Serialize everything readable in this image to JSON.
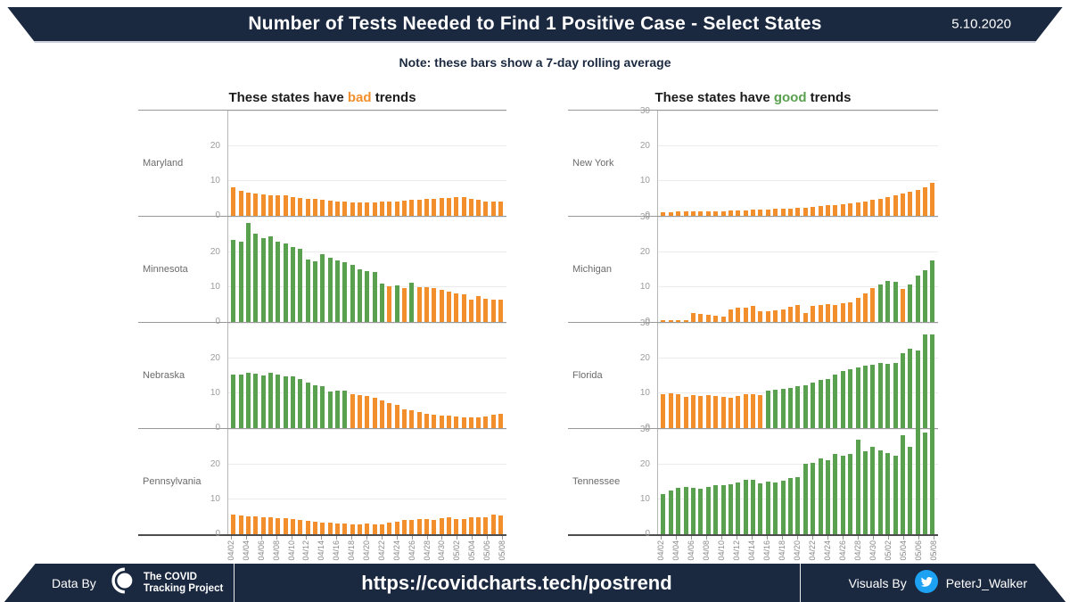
{
  "header": {
    "title": "Number of Tests Needed to Find 1 Positive Case - Select States",
    "date": "5.10.2020"
  },
  "note": "Note: these bars show a 7-day rolling average",
  "columns": [
    {
      "id": "bad",
      "heading_prefix": "These states have ",
      "heading_word": "bad",
      "heading_suffix": " trends"
    },
    {
      "id": "good",
      "heading_prefix": "These states have ",
      "heading_word": "good",
      "heading_suffix": " trends"
    }
  ],
  "colors": {
    "orange": "#F28E2B",
    "green": "#59A14F",
    "navy": "#1B2940",
    "twitter_blue": "#1DA1F2",
    "gridline": "#ECECEC"
  },
  "x_axis": {
    "labels": [
      "04/02",
      "04/04",
      "04/06",
      "04/08",
      "04/10",
      "04/12",
      "04/14",
      "04/16",
      "04/18",
      "04/20",
      "04/22",
      "04/24",
      "04/26",
      "04/28",
      "04/30",
      "05/02",
      "05/04",
      "05/06",
      "05/08"
    ]
  },
  "chart_data": [
    {
      "type": "bar",
      "state": "Maryland",
      "column": "bad",
      "ylim": [
        0,
        30
      ],
      "ticks": [
        0,
        10,
        20
      ],
      "x_start": "04/02",
      "x_end": "05/08",
      "values": [
        8.3,
        7.2,
        6.7,
        6.4,
        6.2,
        6.0,
        5.8,
        5.8,
        5.5,
        5.2,
        5.0,
        4.8,
        4.6,
        4.4,
        4.2,
        4.0,
        3.9,
        3.8,
        3.8,
        3.9,
        4.0,
        4.1,
        4.2,
        4.4,
        4.5,
        4.6,
        4.8,
        5.0,
        5.2,
        5.2,
        5.3,
        5.5,
        5.0,
        4.5,
        4.1,
        4.0,
        4.1
      ],
      "bar_colors": "ooooooooooooooooooooooooooooooooooooo"
    },
    {
      "type": "bar",
      "state": "Minnesota",
      "column": "bad",
      "ylim": [
        0,
        30
      ],
      "ticks": [
        0,
        10,
        20
      ],
      "x_start": "04/02",
      "x_end": "05/08",
      "values": [
        23.5,
        23.0,
        28.5,
        25.5,
        24.0,
        24.5,
        23.0,
        22.5,
        21.5,
        21.0,
        18.0,
        17.5,
        19.5,
        18.5,
        17.8,
        17.3,
        16.3,
        15.2,
        14.5,
        14.3,
        11.0,
        10.3,
        10.5,
        9.7,
        11.4,
        10.0,
        10.0,
        9.7,
        9.2,
        8.7,
        8.3,
        8.0,
        6.3,
        7.5,
        6.6,
        6.5,
        6.3
      ],
      "bar_colors": "gggggggggggggggggggggogogoooooooooooo"
    },
    {
      "type": "bar",
      "state": "Nebraska",
      "column": "bad",
      "ylim": [
        0,
        30
      ],
      "ticks": [
        0,
        10,
        20
      ],
      "x_start": "04/02",
      "x_end": "05/08",
      "values": [
        15.5,
        15.4,
        15.8,
        15.7,
        15.2,
        15.8,
        15.3,
        14.8,
        14.8,
        14.0,
        13.0,
        12.2,
        12.0,
        10.5,
        10.7,
        10.8,
        9.8,
        9.5,
        9.2,
        8.8,
        8.0,
        7.2,
        6.7,
        5.5,
        5.2,
        4.5,
        4.2,
        3.8,
        3.7,
        3.6,
        3.3,
        3.1,
        3.0,
        3.1,
        3.3,
        3.9,
        4.0
      ],
      "bar_colors": "ggggggggggggggggooooooooooooooooooooo"
    },
    {
      "type": "bar",
      "state": "Pennsylvania",
      "column": "bad",
      "ylim": [
        0,
        30
      ],
      "ticks": [
        0,
        10,
        20
      ],
      "x_start": "04/02",
      "x_end": "05/08",
      "values": [
        5.6,
        5.4,
        5.2,
        5.1,
        5.0,
        4.8,
        4.6,
        4.5,
        4.3,
        4.0,
        3.8,
        3.7,
        3.4,
        3.3,
        3.1,
        3.0,
        2.9,
        2.9,
        3.0,
        2.9,
        2.7,
        3.3,
        3.6,
        4.0,
        4.2,
        4.3,
        4.3,
        4.2,
        4.5,
        4.8,
        4.3,
        4.4,
        4.8,
        4.8,
        5.0,
        5.6,
        5.5
      ],
      "bar_colors": "ooooooooooooooooooooooooooooooooooooo"
    },
    {
      "type": "bar",
      "state": "New York",
      "column": "good",
      "ylim": [
        0,
        30
      ],
      "ticks": [
        0,
        10,
        20,
        30
      ],
      "x_start": "04/02",
      "x_end": "05/08",
      "values": [
        1.0,
        1.0,
        1.2,
        1.2,
        1.2,
        1.2,
        1.3,
        1.3,
        1.4,
        1.5,
        1.5,
        1.6,
        1.7,
        1.8,
        1.9,
        2.0,
        2.0,
        2.1,
        2.3,
        2.4,
        2.6,
        2.8,
        3.0,
        3.2,
        3.4,
        3.6,
        3.9,
        4.2,
        4.5,
        4.9,
        5.4,
        5.9,
        6.3,
        7.0,
        7.4,
        8.2,
        9.4
      ],
      "bar_colors": "ooooooooooooooooooooooooooooooooooooo"
    },
    {
      "type": "bar",
      "state": "Michigan",
      "column": "good",
      "ylim": [
        0,
        30
      ],
      "ticks": [
        0,
        10,
        20,
        30
      ],
      "x_start": "04/02",
      "x_end": "05/08",
      "values": [
        0.5,
        0.5,
        0.5,
        0.6,
        2.5,
        2.2,
        2.0,
        1.8,
        1.5,
        3.7,
        4.0,
        4.1,
        4.7,
        3.0,
        3.2,
        3.4,
        3.6,
        4.3,
        4.8,
        2.6,
        4.5,
        5.0,
        5.2,
        4.8,
        5.3,
        5.6,
        6.8,
        8.2,
        9.7,
        10.8,
        11.7,
        11.5,
        9.5,
        10.8,
        13.3,
        14.8,
        17.8
      ],
      "bar_colors": "ooooooooooooooooooooooooooooogggogggg"
    },
    {
      "type": "bar",
      "state": "Florida",
      "column": "good",
      "ylim": [
        0,
        30
      ],
      "ticks": [
        0,
        10,
        20,
        30
      ],
      "x_start": "04/02",
      "x_end": "05/08",
      "values": [
        9.8,
        10.0,
        9.8,
        9.0,
        9.5,
        9.2,
        9.5,
        9.2,
        9.0,
        8.8,
        9.2,
        9.8,
        9.8,
        9.6,
        10.8,
        11.0,
        11.2,
        11.5,
        12.0,
        12.3,
        13.0,
        13.8,
        14.2,
        15.3,
        16.3,
        16.8,
        17.5,
        18.0,
        18.3,
        18.8,
        18.5,
        18.8,
        21.5,
        22.7,
        22.3,
        27.0,
        26.8
      ],
      "bar_colors": "ooooooooooooooggggggggggggggggggggggg"
    },
    {
      "type": "bar",
      "state": "Tennessee",
      "column": "good",
      "ylim": [
        0,
        30
      ],
      "ticks": [
        0,
        10,
        20,
        30
      ],
      "x_start": "04/02",
      "x_end": "05/08",
      "values": [
        11.5,
        12.5,
        13.3,
        13.5,
        13.3,
        13.0,
        13.7,
        14.0,
        14.0,
        14.3,
        15.0,
        15.7,
        15.7,
        14.5,
        15.2,
        14.8,
        15.5,
        16.2,
        16.5,
        20.2,
        20.5,
        21.8,
        21.2,
        23.2,
        22.5,
        23.0,
        27.3,
        23.8,
        25.2,
        24.0,
        23.3,
        22.5,
        28.5,
        25.2,
        30.5,
        29.2,
        31.5
      ],
      "bar_colors": "ggggggggggggggggggggggggggggggggggggg"
    }
  ],
  "footer": {
    "data_by": "Data By",
    "logo_line1": "The COVID",
    "logo_line2": "Tracking Project",
    "url": "https://covidcharts.tech/postrend",
    "visuals_by": "Visuals By",
    "handle": "PeterJ_Walker"
  }
}
